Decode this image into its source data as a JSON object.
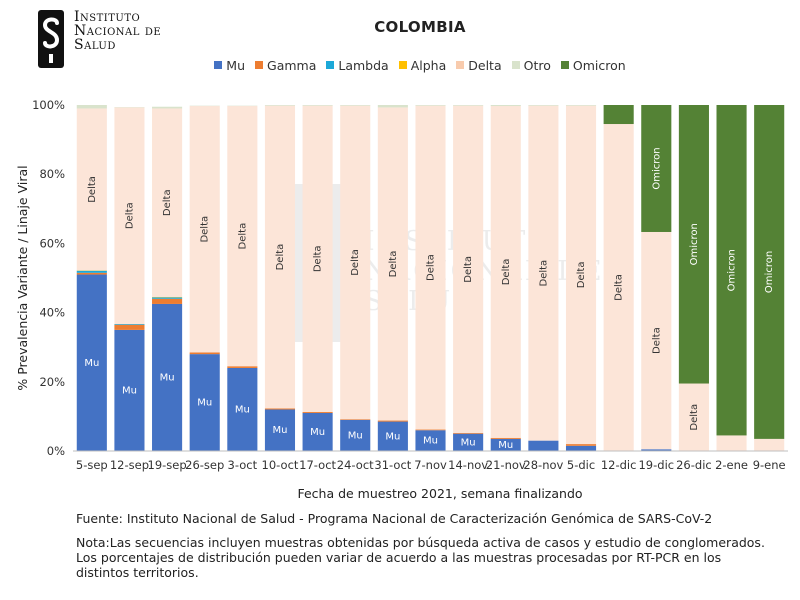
{
  "logo": {
    "lines": [
      "Instituto",
      "Nacional de",
      "Salud"
    ],
    "watermark_lines": [
      "Instituto",
      "Nacional de",
      "Salud"
    ]
  },
  "chart_data": {
    "type": "bar",
    "stacked": true,
    "title": "COLOMBIA",
    "xlabel": "Fecha de muestreo 2021, semana finalizando",
    "ylabel": "% Prevalencia Variante / Linaje Viral",
    "ylim": [
      0,
      100
    ],
    "yticks": [
      "0%",
      "20%",
      "40%",
      "60%",
      "80%",
      "100%"
    ],
    "grid": false,
    "legend_position": "top",
    "categories": [
      "5-sep",
      "12-sep",
      "19-sep",
      "26-sep",
      "3-oct",
      "10-oct",
      "17-oct",
      "24-oct",
      "31-oct",
      "7-nov",
      "14-nov",
      "21-nov",
      "28-nov",
      "5-dic",
      "12-dic",
      "19-dic",
      "26-dic",
      "2-ene",
      "9-ene"
    ],
    "series": [
      {
        "name": "Mu",
        "color": "#4472c4",
        "values": [
          51,
          35,
          42.5,
          28,
          24,
          12,
          11,
          9,
          8.5,
          6,
          5,
          3.5,
          3,
          1.5,
          0,
          0.5,
          0,
          0,
          0
        ]
      },
      {
        "name": "Gamma",
        "color": "#ed7d31",
        "values": [
          0.5,
          1.5,
          1.5,
          0.5,
          0.5,
          0.3,
          0.3,
          0.2,
          0.3,
          0.2,
          0.2,
          0.3,
          0,
          0.5,
          0,
          0,
          0,
          0,
          0
        ]
      },
      {
        "name": "Lambda",
        "color": "#1ca8d8",
        "values": [
          0.6,
          0.2,
          0.4,
          0,
          0,
          0,
          0,
          0,
          0,
          0,
          0,
          0,
          0,
          0,
          0,
          0,
          0,
          0,
          0
        ]
      },
      {
        "name": "Alpha",
        "color": "#ffc000",
        "values": [
          0.1,
          0,
          0.1,
          0,
          0,
          0,
          0,
          0,
          0,
          0,
          0,
          0,
          0,
          0,
          0,
          0,
          0,
          0,
          0
        ]
      },
      {
        "name": "Delta",
        "color": "#fce5d8",
        "values": [
          46.8,
          62.6,
          54.5,
          71.2,
          75.2,
          87.5,
          88.5,
          90.6,
          90.5,
          93.6,
          94.6,
          95.9,
          96.8,
          97.8,
          94.5,
          62.8,
          19.5,
          4.5,
          3.5
        ]
      },
      {
        "name": "Otro",
        "color": "#d9e3cc",
        "values": [
          1,
          0.1,
          0.5,
          0.1,
          0.1,
          0.2,
          0.2,
          0.2,
          0.7,
          0.2,
          0.2,
          0.3,
          0.2,
          0.2,
          0,
          0,
          0,
          0,
          0
        ]
      },
      {
        "name": "Omicron",
        "color": "#548235",
        "values": [
          0,
          0,
          0,
          0,
          0,
          0,
          0,
          0,
          0,
          0,
          0,
          0,
          0,
          0,
          5.5,
          36.7,
          80.5,
          95.5,
          96.5
        ]
      }
    ],
    "bar_labels": [
      {
        "series": "Mu",
        "text": "Mu",
        "bars": [
          0,
          1,
          2,
          3,
          4,
          5,
          6,
          7,
          8,
          9,
          10,
          11
        ]
      },
      {
        "series": "Delta",
        "text": "Delta",
        "bars": [
          0,
          1,
          2,
          3,
          4,
          5,
          6,
          7,
          8,
          9,
          10,
          11,
          12,
          13,
          14,
          15,
          16
        ]
      },
      {
        "series": "Omicron",
        "text": "Omicron",
        "bars": [
          15,
          16,
          17,
          18
        ]
      }
    ]
  },
  "footer": {
    "source": "Fuente: Instituto Nacional de Salud - Programa Nacional de Caracterización Genómica de SARS-CoV-2",
    "note_lines": [
      "Nota:Las secuencias incluyen muestras obtenidas por búsqueda activa de casos y estudio de conglomerados.",
      "Los porcentajes de distribución pueden variar de acuerdo a las muestras procesadas por RT-PCR en los",
      "distintos territorios."
    ]
  }
}
